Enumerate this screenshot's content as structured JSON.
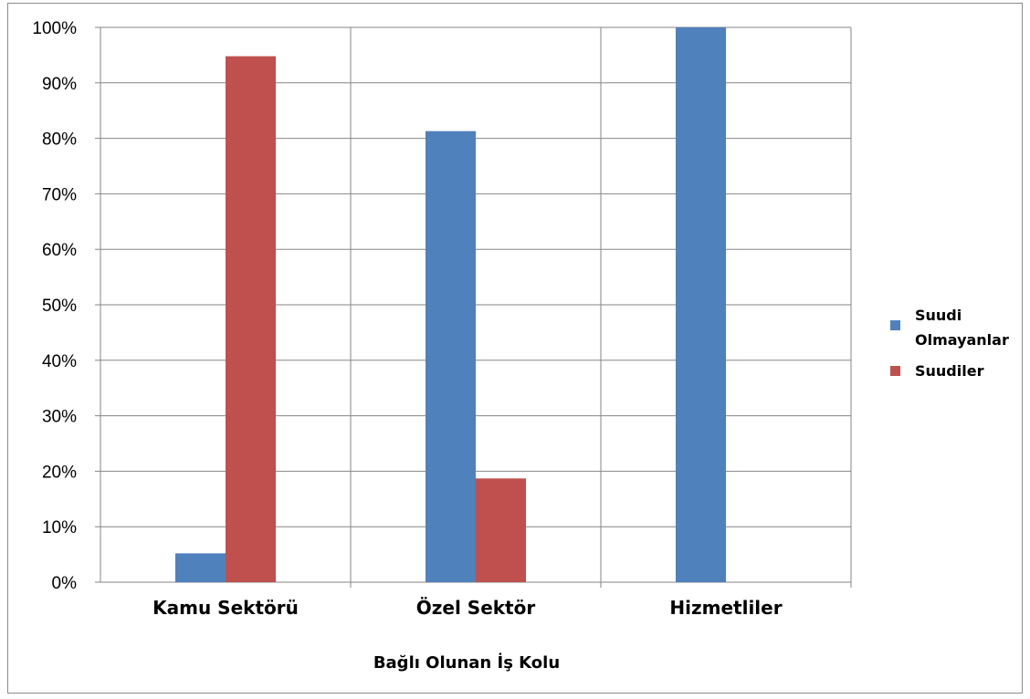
{
  "chart_data": {
    "type": "bar",
    "title": "",
    "xlabel": "Bağlı Olunan İş Kolu",
    "ylabel": "",
    "ylim": [
      0,
      100
    ],
    "yticks": [
      "0%",
      "10%",
      "20%",
      "30%",
      "40%",
      "50%",
      "60%",
      "70%",
      "80%",
      "90%",
      "100%"
    ],
    "categories": [
      "Kamu Sektörü",
      "Özel Sektör",
      "Hizmetliler"
    ],
    "series": [
      {
        "name": "Suudi Olmayanlar",
        "legend_lines": [
          "Suudi",
          "Olmayanlar"
        ],
        "color": "#4f81bd",
        "values": [
          5.2,
          81.3,
          100
        ]
      },
      {
        "name": "Suudiler",
        "legend_lines": [
          "Suudiler"
        ],
        "color": "#c0504d",
        "values": [
          94.8,
          18.7,
          0
        ]
      }
    ],
    "grid": true,
    "legend_position": "right"
  }
}
